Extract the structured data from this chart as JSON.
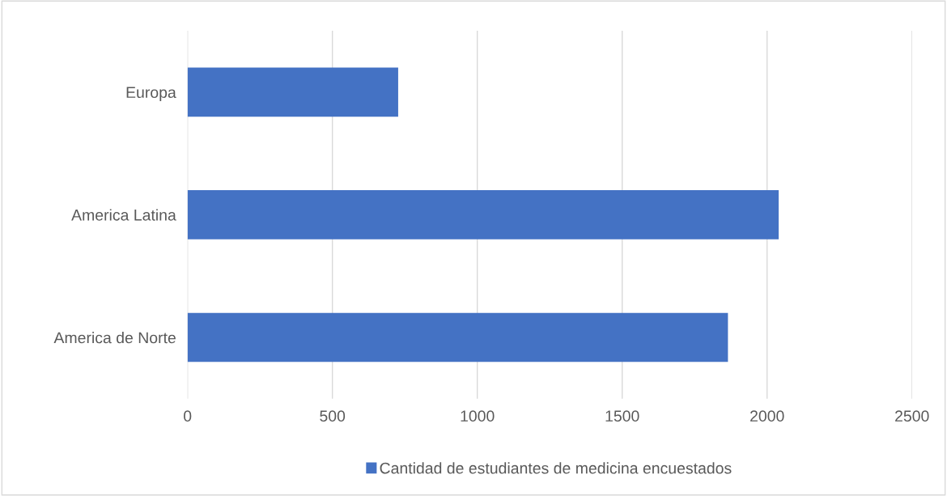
{
  "chart_data": {
    "type": "bar",
    "orientation": "horizontal",
    "categories": [
      "Europa",
      "America Latina",
      "America de Norte"
    ],
    "series": [
      {
        "name": "Cantidad de estudiantes de medicina encuestados",
        "color": "#4472c4",
        "values": [
          727,
          2040,
          1865
        ]
      }
    ],
    "xlim": [
      0,
      2500
    ],
    "xticks": [
      0,
      500,
      1000,
      1500,
      2000,
      2500
    ],
    "grid": "x",
    "legend": "bottom"
  }
}
